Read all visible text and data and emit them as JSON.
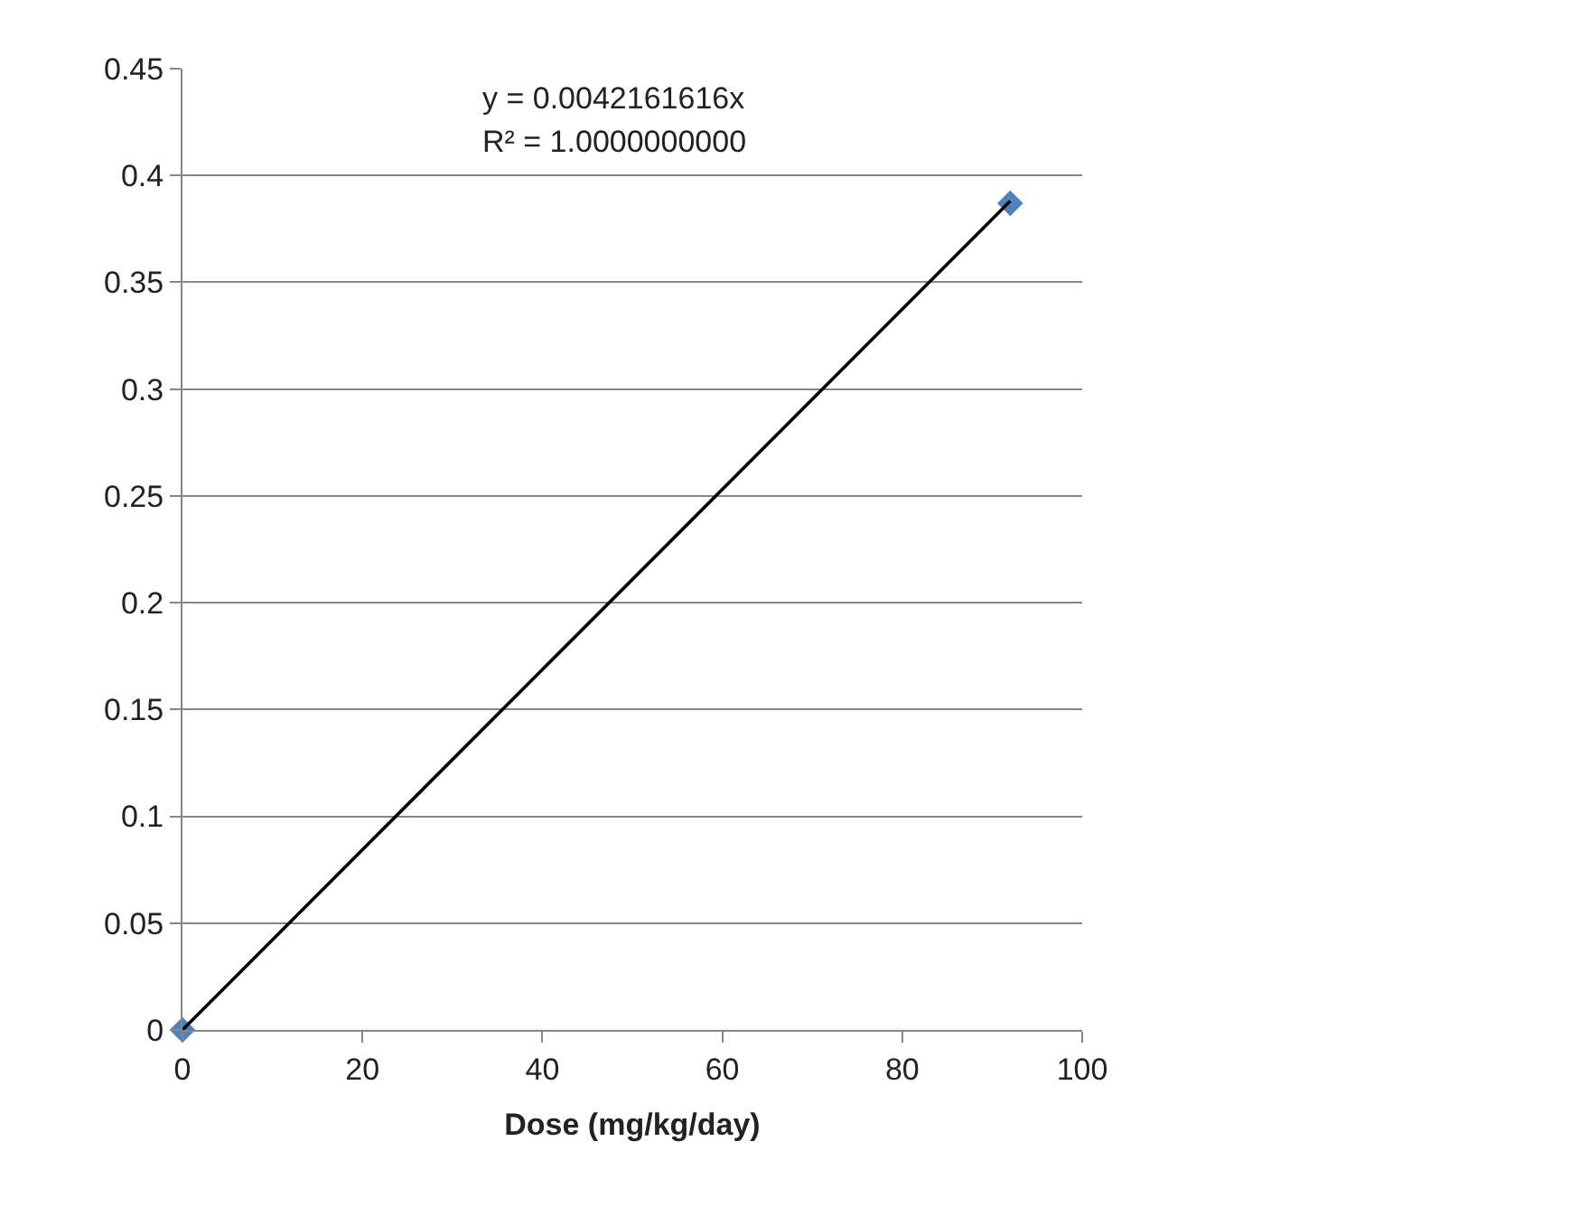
{
  "chart_data": {
    "type": "scatter",
    "xlabel": "Dose (mg/kg/day)",
    "x": [
      0,
      92
    ],
    "series": [
      {
        "color": "#4f81bd",
        "marker": "diamond",
        "values": [
          0,
          0.387
        ]
      },
      {
        "type": "line",
        "color": "#000000",
        "marker": "none",
        "line_style": "solid",
        "values": [
          0,
          0.388
        ]
      }
    ],
    "annotations": [
      "y = 0.0042161616x",
      "R² = 1.0000000000"
    ],
    "xlim": [
      0,
      100
    ],
    "xticks": [
      0,
      20,
      40,
      60,
      80,
      100
    ],
    "ylim": [
      0,
      0.45
    ],
    "yticks": [
      0,
      0.05,
      0.1,
      0.15,
      0.2,
      0.25,
      0.3,
      0.35,
      0.4,
      0.45
    ],
    "grid": "y"
  }
}
